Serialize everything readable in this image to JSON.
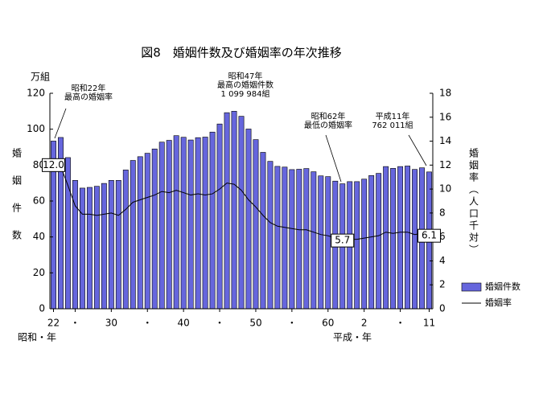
{
  "chart_data": {
    "type": "bar_line",
    "title": "図8　婚姻件数及び婚姻率の年次推移",
    "y_axis_unit": "万組",
    "y_axis_label": "婚姻件数",
    "y2_axis_label": "婚姻率（人口千対）",
    "x_axis_label_left": "昭和・年",
    "x_axis_label_right": "平成・年",
    "categories": [
      "22",
      null,
      null,
      "・",
      null,
      null,
      null,
      null,
      "30",
      null,
      null,
      null,
      null,
      "・",
      null,
      null,
      null,
      null,
      "40",
      null,
      null,
      null,
      null,
      "・",
      null,
      null,
      null,
      null,
      "50",
      null,
      null,
      null,
      null,
      "・",
      null,
      null,
      null,
      null,
      "60",
      null,
      null,
      null,
      null,
      "2",
      null,
      null,
      null,
      null,
      "・",
      null,
      null,
      null,
      "11"
    ],
    "series": [
      {
        "name": "婚姻件数",
        "color": "#6666dd",
        "values": [
          93.4,
          95.4,
          84.2,
          71.5,
          67.2,
          67.6,
          68.2,
          69.8,
          71.5,
          71.5,
          77.3,
          82.6,
          84.7,
          86.6,
          89.0,
          92.8,
          93.8,
          96.4,
          95.5,
          94.0,
          95.3,
          95.6,
          98.4,
          102.9,
          109.2,
          110.0,
          107.2,
          100.1,
          94.2,
          87.1,
          82.1,
          79.3,
          78.9,
          77.5,
          77.7,
          78.1,
          76.3,
          74.0,
          73.6,
          71.1,
          69.6,
          70.8,
          70.8,
          72.2,
          74.2,
          75.4,
          79.2,
          78.2,
          79.2,
          79.5,
          77.6,
          78.5,
          76.2
        ]
      },
      {
        "name": "婚姻率",
        "color": "#000000",
        "axis": "y2",
        "values": [
          12.0,
          11.9,
          10.3,
          8.6,
          7.9,
          7.9,
          7.8,
          7.9,
          8.0,
          7.8,
          8.3,
          8.9,
          9.1,
          9.3,
          9.5,
          9.8,
          9.7,
          9.9,
          9.7,
          9.5,
          9.6,
          9.5,
          9.6,
          10.0,
          10.5,
          10.4,
          9.9,
          9.1,
          8.5,
          7.8,
          7.2,
          6.9,
          6.8,
          6.7,
          6.6,
          6.6,
          6.4,
          6.2,
          6.1,
          5.9,
          5.7,
          5.8,
          5.8,
          5.9,
          6.0,
          6.1,
          6.4,
          6.3,
          6.4,
          6.4,
          6.2,
          6.3,
          6.1
        ],
        "value_labels": [
          "12.0",
          null,
          null,
          null,
          null,
          null,
          null,
          null,
          null,
          null,
          null,
          null,
          null,
          null,
          null,
          null,
          null,
          null,
          null,
          null,
          null,
          null,
          null,
          null,
          null,
          null,
          null,
          null,
          null,
          null,
          null,
          null,
          null,
          null,
          null,
          null,
          null,
          null,
          null,
          null,
          "5.7",
          null,
          null,
          null,
          null,
          null,
          null,
          null,
          null,
          null,
          null,
          null,
          "6.1"
        ]
      }
    ],
    "ylim": [
      0,
      120
    ],
    "yticks": [
      0,
      20,
      40,
      60,
      80,
      100,
      120
    ],
    "y2lim": [
      0,
      18
    ],
    "y2ticks": [
      0,
      2,
      4,
      6,
      8,
      10,
      12,
      14,
      16,
      18
    ],
    "annotations": [
      {
        "lines": [
          "昭和22年",
          "最高の婚姻率"
        ]
      },
      {
        "lines": [
          "昭和47年",
          "最高の婚姻件数",
          "1 099 984組"
        ]
      },
      {
        "lines": [
          "昭和62年",
          "最低の婚姻率"
        ]
      },
      {
        "lines": [
          "平成11年",
          "762 011組"
        ]
      }
    ]
  }
}
